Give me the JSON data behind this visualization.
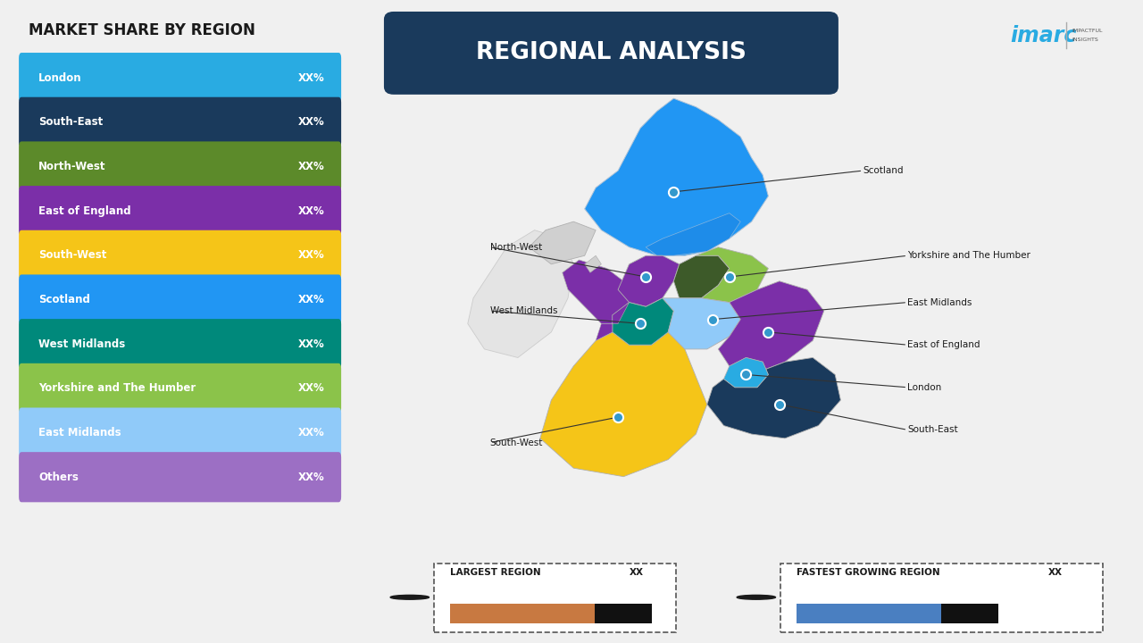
{
  "title": "REGIONAL ANALYSIS",
  "left_title": "MARKET SHARE BY REGION",
  "background_color": "#f0f0f0",
  "title_bg_color": "#1a3a5c",
  "regions": [
    {
      "name": "London",
      "color": "#29abe2",
      "value": "XX%"
    },
    {
      "name": "South-East",
      "color": "#1a3a5c",
      "value": "XX%"
    },
    {
      "name": "North-West",
      "color": "#5c8a2a",
      "value": "XX%"
    },
    {
      "name": "East of England",
      "color": "#7b2fa8",
      "value": "XX%"
    },
    {
      "name": "South-West",
      "color": "#f5c518",
      "value": "XX%"
    },
    {
      "name": "Scotland",
      "color": "#2196f3",
      "value": "XX%"
    },
    {
      "name": "West Midlands",
      "color": "#00897b",
      "value": "XX%"
    },
    {
      "name": "Yorkshire and The Humber",
      "color": "#8bc34a",
      "value": "XX%"
    },
    {
      "name": "East Midlands",
      "color": "#90caf9",
      "value": "XX%"
    },
    {
      "name": "Others",
      "color": "#9c6fc4",
      "value": "XX%"
    }
  ],
  "legend1_text": "LARGEST REGION",
  "legend1_value": "XX",
  "legend1_color": "#c87941",
  "legend2_text": "FASTEST GROWING REGION",
  "legend2_value": "XX",
  "legend2_color": "#4a7fc1",
  "imarc_color": "#29abe2",
  "map_region_colors": {
    "Scotland": "#2196f3",
    "North-West": "#7b2fa8",
    "North-East": "#4a6741",
    "Yorkshire and The Humber": "#8bc34a",
    "West Midlands": "#00897b",
    "East Midlands": "#90caf9",
    "East of England": "#7b2fa8",
    "London": "#29abe2",
    "South-East": "#1a3a5c",
    "South-West": "#f5c518",
    "Wales": "#7b2fa8",
    "Northern Ireland": "#cccccc",
    "Ireland": "#e8e8e8"
  }
}
